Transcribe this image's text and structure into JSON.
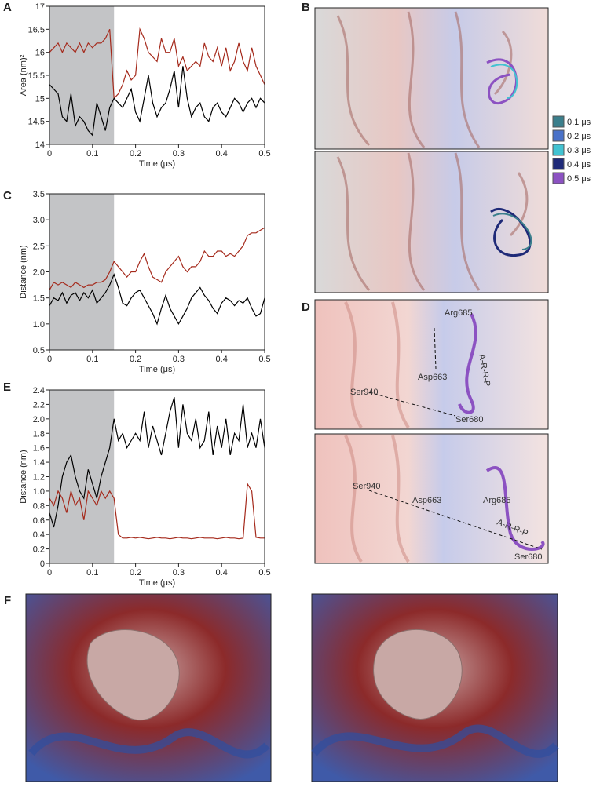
{
  "chart_data": [
    {
      "type": "line",
      "label": "A",
      "x_label": "Time (μs)",
      "y_label": "Area (nm)²",
      "xlim": [
        0,
        0.5
      ],
      "xticks": [
        0,
        0.1,
        0.2,
        0.3,
        0.4,
        0.5
      ],
      "ylim": [
        14,
        17
      ],
      "yticks": [
        14,
        14.5,
        15,
        15.5,
        16,
        16.5,
        17
      ],
      "shaded_xrange": [
        0,
        0.15
      ],
      "shade_color": "#c3c4c6",
      "x": [
        0,
        0.01,
        0.02,
        0.03,
        0.04,
        0.05,
        0.06,
        0.07,
        0.08,
        0.09,
        0.1,
        0.11,
        0.12,
        0.13,
        0.14,
        0.15,
        0.16,
        0.17,
        0.18,
        0.19,
        0.2,
        0.21,
        0.22,
        0.23,
        0.24,
        0.25,
        0.26,
        0.27,
        0.28,
        0.29,
        0.3,
        0.31,
        0.32,
        0.33,
        0.34,
        0.35,
        0.36,
        0.37,
        0.38,
        0.39,
        0.4,
        0.41,
        0.42,
        0.43,
        0.44,
        0.45,
        0.46,
        0.47,
        0.48,
        0.49,
        0.5
      ],
      "series": [
        {
          "color": "#a52a1c",
          "values": [
            16.0,
            16.1,
            16.2,
            16.0,
            16.2,
            16.1,
            16.0,
            16.2,
            16.0,
            16.2,
            16.1,
            16.2,
            16.2,
            16.3,
            16.5,
            15.0,
            15.1,
            15.3,
            15.6,
            15.4,
            15.5,
            16.5,
            16.3,
            16.0,
            15.9,
            15.8,
            16.3,
            16.0,
            16.0,
            16.3,
            15.7,
            15.9,
            15.6,
            15.7,
            15.8,
            15.7,
            16.2,
            15.9,
            15.8,
            16.1,
            15.7,
            16.1,
            15.6,
            15.8,
            16.2,
            15.8,
            15.6,
            16.1,
            15.7,
            15.5,
            15.3
          ]
        },
        {
          "color": "#000000",
          "values": [
            15.3,
            15.2,
            15.1,
            14.6,
            14.5,
            15.1,
            14.4,
            14.6,
            14.5,
            14.3,
            14.2,
            14.9,
            14.6,
            14.3,
            14.8,
            15.0,
            14.9,
            14.8,
            15.0,
            15.2,
            14.7,
            14.5,
            15.0,
            15.5,
            14.9,
            14.6,
            14.8,
            14.9,
            15.2,
            15.6,
            14.8,
            15.7,
            15.0,
            14.6,
            14.8,
            14.9,
            14.6,
            14.5,
            14.8,
            14.9,
            14.7,
            14.6,
            14.8,
            15.0,
            14.9,
            14.7,
            14.9,
            15.0,
            14.8,
            15.0,
            14.9
          ]
        }
      ]
    },
    {
      "type": "line",
      "label": "C",
      "x_label": "Time (μs)",
      "y_label": "Distance (nm)",
      "xlim": [
        0,
        0.5
      ],
      "xticks": [
        0,
        0.1,
        0.2,
        0.3,
        0.4,
        0.5
      ],
      "ylim": [
        0.5,
        3.5
      ],
      "yticks": [
        0.5,
        {
          "value": 1,
          "label": "1.0"
        },
        1.5,
        {
          "value": 2,
          "label": "2.0"
        },
        2.5,
        {
          "value": 3,
          "label": "3.0"
        },
        3.5
      ],
      "shaded_xrange": [
        0,
        0.15
      ],
      "shade_color": "#c3c4c6",
      "x": [
        0,
        0.01,
        0.02,
        0.03,
        0.04,
        0.05,
        0.06,
        0.07,
        0.08,
        0.09,
        0.1,
        0.11,
        0.12,
        0.13,
        0.14,
        0.15,
        0.16,
        0.17,
        0.18,
        0.19,
        0.2,
        0.21,
        0.22,
        0.23,
        0.24,
        0.25,
        0.26,
        0.27,
        0.28,
        0.29,
        0.3,
        0.31,
        0.32,
        0.33,
        0.34,
        0.35,
        0.36,
        0.37,
        0.38,
        0.39,
        0.4,
        0.41,
        0.42,
        0.43,
        0.44,
        0.45,
        0.46,
        0.47,
        0.48,
        0.49,
        0.5
      ],
      "series": [
        {
          "color": "#a52a1c",
          "values": [
            1.65,
            1.8,
            1.75,
            1.8,
            1.75,
            1.7,
            1.8,
            1.75,
            1.7,
            1.75,
            1.75,
            1.8,
            1.8,
            1.85,
            2.0,
            2.2,
            2.1,
            2.0,
            1.9,
            2.0,
            2.0,
            2.2,
            2.35,
            2.1,
            1.9,
            1.85,
            1.8,
            2.0,
            2.1,
            2.2,
            2.3,
            2.1,
            2.0,
            2.1,
            2.1,
            2.2,
            2.4,
            2.3,
            2.3,
            2.4,
            2.4,
            2.3,
            2.35,
            2.3,
            2.4,
            2.5,
            2.7,
            2.75,
            2.75,
            2.8,
            2.85
          ]
        },
        {
          "color": "#000000",
          "values": [
            1.35,
            1.5,
            1.45,
            1.6,
            1.4,
            1.55,
            1.6,
            1.45,
            1.6,
            1.5,
            1.65,
            1.4,
            1.5,
            1.6,
            1.75,
            1.95,
            1.7,
            1.4,
            1.35,
            1.5,
            1.6,
            1.65,
            1.5,
            1.35,
            1.2,
            1.0,
            1.3,
            1.55,
            1.3,
            1.15,
            1.0,
            1.15,
            1.3,
            1.5,
            1.6,
            1.7,
            1.55,
            1.45,
            1.3,
            1.2,
            1.4,
            1.5,
            1.45,
            1.35,
            1.45,
            1.4,
            1.5,
            1.3,
            1.15,
            1.2,
            1.5
          ]
        }
      ]
    },
    {
      "type": "line",
      "label": "E",
      "x_label": "Time (μs)",
      "y_label": "Distance (nm)",
      "xlim": [
        0,
        0.5
      ],
      "xticks": [
        0,
        0.1,
        0.2,
        0.3,
        0.4,
        0.5
      ],
      "ylim": [
        0,
        2.4
      ],
      "yticks": [
        0,
        0.2,
        0.4,
        0.6,
        0.8,
        {
          "value": 1,
          "label": "1.0"
        },
        1.2,
        1.4,
        1.6,
        1.8,
        {
          "value": 2,
          "label": "2.0"
        },
        2.2,
        2.4
      ],
      "shaded_xrange": [
        0,
        0.15
      ],
      "shade_color": "#c3c4c6",
      "x": [
        0,
        0.01,
        0.02,
        0.03,
        0.04,
        0.05,
        0.06,
        0.07,
        0.08,
        0.09,
        0.1,
        0.11,
        0.12,
        0.13,
        0.14,
        0.15,
        0.16,
        0.17,
        0.18,
        0.19,
        0.2,
        0.21,
        0.22,
        0.23,
        0.24,
        0.25,
        0.26,
        0.27,
        0.28,
        0.29,
        0.3,
        0.31,
        0.32,
        0.33,
        0.34,
        0.35,
        0.36,
        0.37,
        0.38,
        0.39,
        0.4,
        0.41,
        0.42,
        0.43,
        0.44,
        0.45,
        0.46,
        0.47,
        0.48,
        0.49,
        0.5
      ],
      "series": [
        {
          "color": "#000000",
          "values": [
            0.7,
            0.5,
            0.8,
            1.2,
            1.4,
            1.5,
            1.2,
            1.0,
            0.9,
            1.3,
            1.1,
            0.9,
            1.2,
            1.4,
            1.6,
            2.0,
            1.7,
            1.8,
            1.6,
            1.7,
            1.8,
            1.7,
            2.1,
            1.6,
            1.9,
            1.7,
            1.5,
            1.8,
            2.1,
            2.3,
            1.6,
            2.2,
            1.8,
            1.7,
            2.0,
            1.6,
            1.7,
            2.1,
            1.5,
            1.9,
            1.6,
            2.0,
            1.5,
            1.8,
            1.7,
            2.2,
            1.6,
            1.8,
            1.6,
            2.0,
            1.6
          ]
        },
        {
          "color": "#a52a1c",
          "values": [
            0.9,
            0.8,
            1.0,
            0.9,
            0.7,
            1.0,
            0.8,
            0.9,
            0.6,
            1.0,
            0.9,
            0.8,
            1.0,
            0.9,
            1.0,
            0.9,
            0.4,
            0.35,
            0.35,
            0.36,
            0.35,
            0.36,
            0.35,
            0.34,
            0.35,
            0.36,
            0.35,
            0.35,
            0.34,
            0.35,
            0.36,
            0.35,
            0.35,
            0.34,
            0.35,
            0.36,
            0.35,
            0.35,
            0.35,
            0.34,
            0.35,
            0.36,
            0.35,
            0.35,
            0.34,
            0.35,
            1.1,
            1.0,
            0.36,
            0.35,
            0.35
          ]
        }
      ]
    }
  ],
  "panel_b": {
    "label": "B",
    "legend": [
      {
        "name": "0.1 μs",
        "color": "#3b7f8c"
      },
      {
        "name": "0.2 μs",
        "color": "#4a72c9"
      },
      {
        "name": "0.3 μs",
        "color": "#42c3d2"
      },
      {
        "name": "0.4 μs",
        "color": "#1f2a78"
      },
      {
        "name": "0.5 μs",
        "color": "#8c52c2"
      }
    ]
  },
  "panel_d": {
    "label": "D",
    "images": [
      {
        "arg": "Arg685",
        "asp": "Asp663",
        "ser940": "Ser940",
        "ser680": "Ser680",
        "motif": "A-R-R-P"
      },
      {
        "arg": "Arg685",
        "asp": "Asp663",
        "ser940": "Ser940",
        "ser680": "Ser680",
        "motif": "A-R-R-P"
      }
    ]
  },
  "panel_f": {
    "label": "F"
  }
}
